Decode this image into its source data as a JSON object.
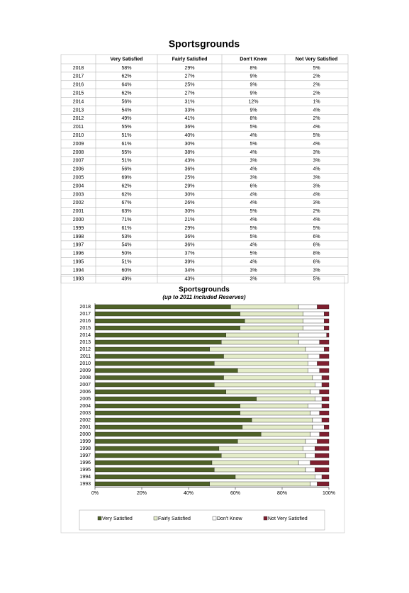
{
  "title": "Sportsgrounds",
  "table": {
    "columns": [
      "Very Satisfied",
      "Fairly Satisfied",
      "Don't Know",
      "Not Very Satisfied"
    ],
    "rows": [
      [
        "2018",
        "58%",
        "29%",
        "8%",
        "5%"
      ],
      [
        "2017",
        "62%",
        "27%",
        "9%",
        "2%"
      ],
      [
        "2016",
        "64%",
        "25%",
        "9%",
        "2%"
      ],
      [
        "2015",
        "62%",
        "27%",
        "9%",
        "2%"
      ],
      [
        "2014",
        "56%",
        "31%",
        "12%",
        "1%"
      ],
      [
        "2013",
        "54%",
        "33%",
        "9%",
        "4%"
      ],
      [
        "2012",
        "49%",
        "41%",
        "8%",
        "2%"
      ],
      [
        "2011",
        "55%",
        "36%",
        "5%",
        "4%"
      ],
      [
        "2010",
        "51%",
        "40%",
        "4%",
        "5%"
      ],
      [
        "2009",
        "61%",
        "30%",
        "5%",
        "4%"
      ],
      [
        "2008",
        "55%",
        "38%",
        "4%",
        "3%"
      ],
      [
        "2007",
        "51%",
        "43%",
        "3%",
        "3%"
      ],
      [
        "2006",
        "56%",
        "36%",
        "4%",
        "4%"
      ],
      [
        "2005",
        "69%",
        "25%",
        "3%",
        "3%"
      ],
      [
        "2004",
        "62%",
        "29%",
        "6%",
        "3%"
      ],
      [
        "2003",
        "62%",
        "30%",
        "4%",
        "4%"
      ],
      [
        "2002",
        "67%",
        "26%",
        "4%",
        "3%"
      ],
      [
        "2001",
        "63%",
        "30%",
        "5%",
        "2%"
      ],
      [
        "2000",
        "71%",
        "21%",
        "4%",
        "4%"
      ],
      [
        "1999",
        "61%",
        "29%",
        "5%",
        "5%"
      ],
      [
        "1998",
        "53%",
        "36%",
        "5%",
        "6%"
      ],
      [
        "1997",
        "54%",
        "36%",
        "4%",
        "6%"
      ],
      [
        "1996",
        "50%",
        "37%",
        "5%",
        "8%"
      ],
      [
        "1995",
        "51%",
        "39%",
        "4%",
        "6%"
      ],
      [
        "1994",
        "60%",
        "34%",
        "3%",
        "3%"
      ],
      [
        "1993",
        "49%",
        "43%",
        "3%",
        "5%"
      ]
    ]
  },
  "chart_data": {
    "type": "stacked-barh",
    "title": "Sportsgrounds",
    "subtitle": "(up to 2011 included Reserves)",
    "categories": [
      "2018",
      "2017",
      "2016",
      "2015",
      "2014",
      "2013",
      "2012",
      "2011",
      "2010",
      "2009",
      "2008",
      "2007",
      "2006",
      "2005",
      "2004",
      "2003",
      "2002",
      "2001",
      "2000",
      "1999",
      "1998",
      "1997",
      "1996",
      "1995",
      "1994",
      "1993"
    ],
    "series": [
      {
        "name": "Very Satisfied",
        "color": "#4f6228",
        "values": [
          58,
          62,
          64,
          62,
          56,
          54,
          49,
          55,
          51,
          61,
          55,
          51,
          56,
          69,
          62,
          62,
          67,
          63,
          71,
          61,
          53,
          54,
          50,
          51,
          60,
          49
        ]
      },
      {
        "name": "Fairly Satisfied",
        "color": "#e4ecc9",
        "values": [
          29,
          27,
          25,
          27,
          31,
          33,
          41,
          36,
          40,
          30,
          38,
          43,
          36,
          25,
          29,
          30,
          26,
          30,
          21,
          29,
          36,
          36,
          37,
          39,
          34,
          43
        ]
      },
      {
        "name": "Don't Know",
        "color": "#ffffff",
        "values": [
          8,
          9,
          9,
          9,
          12,
          9,
          8,
          5,
          4,
          5,
          4,
          3,
          4,
          3,
          6,
          4,
          4,
          5,
          4,
          5,
          5,
          4,
          5,
          4,
          3,
          3
        ]
      },
      {
        "name": "Not Very Satisfied",
        "color": "#7f1f2f",
        "values": [
          5,
          2,
          2,
          2,
          1,
          4,
          2,
          4,
          5,
          4,
          3,
          3,
          4,
          3,
          3,
          4,
          3,
          2,
          4,
          5,
          6,
          6,
          8,
          6,
          3,
          5
        ]
      }
    ],
    "xlim": [
      0,
      100
    ],
    "xticks": [
      {
        "value": 0,
        "label": "0%"
      },
      {
        "value": 20,
        "label": "20%"
      },
      {
        "value": 40,
        "label": "40%"
      },
      {
        "value": 60,
        "label": "60%"
      },
      {
        "value": 80,
        "label": "80%"
      },
      {
        "value": 100,
        "label": "100%"
      }
    ]
  }
}
